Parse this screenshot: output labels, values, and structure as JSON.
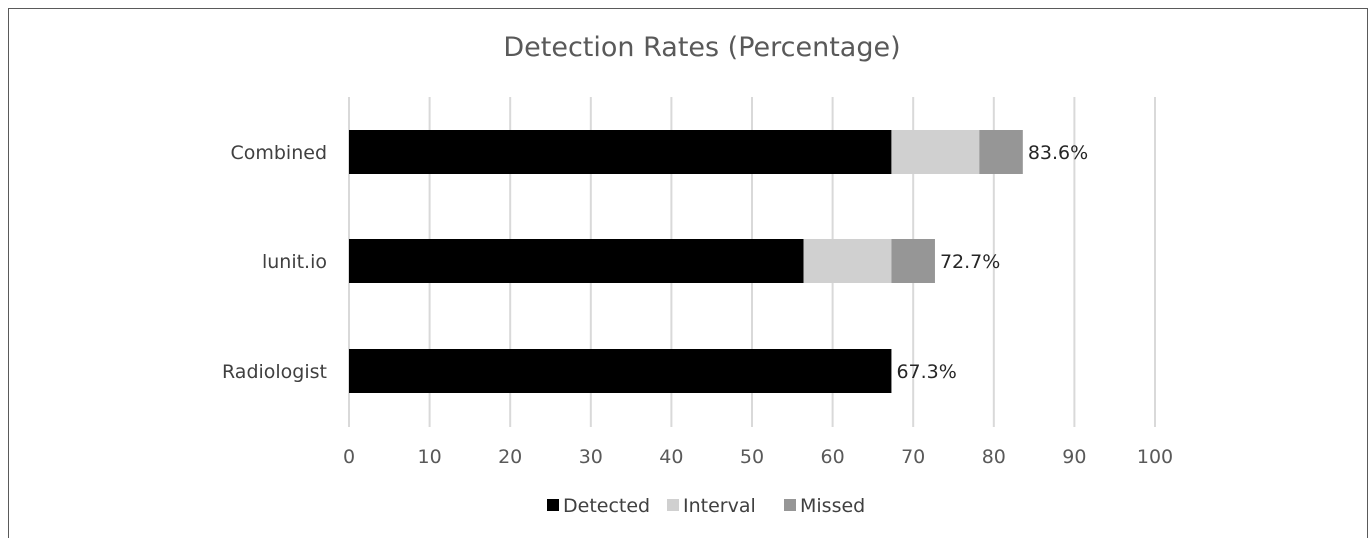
{
  "chart_data": {
    "type": "bar",
    "orientation": "horizontal",
    "stacked": true,
    "title": "Detection Rates (Percentage)",
    "xlabel": "",
    "ylabel": "",
    "xlim": [
      0,
      100
    ],
    "x_ticks": [
      "0",
      "10",
      "20",
      "30",
      "40",
      "50",
      "60",
      "70",
      "80",
      "90",
      "100"
    ],
    "grid": "vertical",
    "legend_position": "bottom",
    "categories": [
      "Combined",
      "lunit.io",
      "Radiologist"
    ],
    "series": [
      {
        "name": "Detected",
        "color": "#000000",
        "values": [
          67.3,
          56.4,
          67.3
        ]
      },
      {
        "name": "Interval",
        "color": "#d0d0d0",
        "values": [
          10.9,
          10.9,
          0
        ]
      },
      {
        "name": "Missed",
        "color": "#969696",
        "values": [
          5.4,
          5.4,
          0
        ]
      }
    ],
    "data_labels": [
      "83.6%",
      "72.7%",
      "67.3%"
    ]
  }
}
